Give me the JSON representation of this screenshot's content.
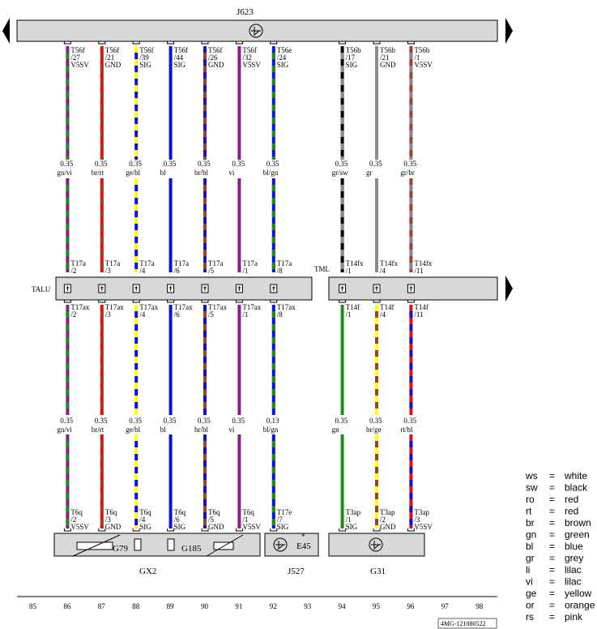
{
  "top_module": {
    "name": "J623"
  },
  "labels": {
    "talu": "TALU",
    "tml": "TML",
    "gx2": "GX2",
    "j527": "J527",
    "g31": "G31",
    "g79": "G79",
    "g185": "G185",
    "e45": "E45",
    "e45_star": "*",
    "ref_code": "4MG-121080522"
  },
  "columns": [
    85,
    86,
    87,
    88,
    89,
    90,
    91,
    92,
    93,
    94,
    95,
    96,
    97,
    98
  ],
  "wires": [
    {
      "col": 86,
      "colors": [
        "purple",
        "green"
      ],
      "top_pin": [
        "T56f",
        "/27",
        "V5SV"
      ],
      "sec1": [
        "0.35",
        "gn/vi"
      ],
      "mid_pin": [
        "T17a",
        "/2"
      ],
      "low_pin": [
        "T17ax",
        "/2"
      ],
      "sec2": [
        "0.35",
        "gn/vi"
      ],
      "bot_pin": [
        "T6q",
        "/2",
        "V5SV"
      ]
    },
    {
      "col": 87,
      "colors": [
        "red",
        "brown"
      ],
      "top_pin": [
        "T56f",
        "/21",
        "GND"
      ],
      "sec1": [
        "0.35",
        "br/rt"
      ],
      "mid_pin": [
        "T17a",
        "/3"
      ],
      "low_pin": [
        "T17ax",
        "/3"
      ],
      "sec2": [
        "0.35",
        "br/rt"
      ],
      "bot_pin": [
        "T6q",
        "/3",
        "GND"
      ]
    },
    {
      "col": 88,
      "colors": [
        "yellow",
        "blue"
      ],
      "top_pin": [
        "T56f",
        "/39",
        "SIG"
      ],
      "sec1": [
        "0.35",
        "ge/bl"
      ],
      "mid_pin": [
        "T17a",
        "/4"
      ],
      "low_pin": [
        "T17ax",
        "/4"
      ],
      "sec2": [
        "0.35",
        "ge/bl"
      ],
      "bot_pin": [
        "T6q",
        "/4",
        "SIG"
      ]
    },
    {
      "col": 89,
      "colors": [
        "blue"
      ],
      "top_pin": [
        "T56f",
        "/44",
        "SIG"
      ],
      "sec1": [
        "0.35",
        "bl"
      ],
      "mid_pin": [
        "T17a",
        "/6"
      ],
      "low_pin": [
        "T17ax",
        "/6"
      ],
      "sec2": [
        "0.35",
        "bl"
      ],
      "bot_pin": [
        "T6q",
        "/6",
        "SIG"
      ]
    },
    {
      "col": 90,
      "colors": [
        "blue",
        "brown"
      ],
      "top_pin": [
        "T56f",
        "/26",
        "GND"
      ],
      "sec1": [
        "0.35",
        "br/bl"
      ],
      "mid_pin": [
        "T17a",
        "/5"
      ],
      "low_pin": [
        "T17ax",
        "/5"
      ],
      "sec2": [
        "0.35",
        "br/bl"
      ],
      "bot_pin": [
        "T6q",
        "/5",
        "GND"
      ]
    },
    {
      "col": 91,
      "colors": [
        "purple"
      ],
      "top_pin": [
        "T56f",
        "/32",
        "V5SV"
      ],
      "sec1": [
        "0.35",
        "vi"
      ],
      "mid_pin": [
        "T17a",
        "/1"
      ],
      "low_pin": [
        "T17ax",
        "/1"
      ],
      "sec2": [
        "0.35",
        "vi"
      ],
      "bot_pin": [
        "T6q",
        "/1",
        "V5SV"
      ]
    },
    {
      "col": 92,
      "colors": [
        "blue",
        "green"
      ],
      "top_pin": [
        "T56e",
        "/24",
        "SIG"
      ],
      "sec1": [
        "0.35",
        "bl/gn"
      ],
      "mid_pin": [
        "T17a",
        "/8"
      ],
      "low_pin": [
        "T17ax",
        "/8"
      ],
      "sec2": [
        "0.13",
        "bl/gn"
      ],
      "bot_pin": [
        "T17e",
        "/7",
        "SIG"
      ]
    },
    {
      "col": 94,
      "colors": [
        "black",
        "gray"
      ],
      "top_pin": [
        "T56b",
        "/17",
        "SIG"
      ],
      "sec1": [
        "0.35",
        "gr/sw"
      ],
      "mid_pin": [
        "T14fx",
        "/1"
      ],
      "low_pin": [
        "T14f",
        "/1"
      ],
      "sec2": [
        "0.35",
        "gn"
      ],
      "bot_pin": [
        "T3ap",
        "/1",
        "SIG"
      ],
      "low_colors": [
        "green"
      ]
    },
    {
      "col": 95,
      "colors": [
        "gray"
      ],
      "top_pin": [
        "T56b",
        "/21",
        "GND"
      ],
      "sec1": [
        "0.35",
        "gr"
      ],
      "mid_pin": [
        "T14fx",
        "/4"
      ],
      "low_pin": [
        "T14f",
        "/4"
      ],
      "sec2": [
        "0.35",
        "br/ge"
      ],
      "bot_pin": [
        "T3ap",
        "/2",
        "GND"
      ],
      "low_colors": [
        "yellow",
        "brown"
      ]
    },
    {
      "col": 96,
      "colors": [
        "brown",
        "gray"
      ],
      "top_pin": [
        "T56b",
        "/1",
        "V5SV"
      ],
      "sec1": [
        "0.35",
        "gr/br"
      ],
      "mid_pin": [
        "T14fx",
        "/11"
      ],
      "low_pin": [
        "T14f",
        "/11"
      ],
      "sec2": [
        "0.35",
        "rt/bl"
      ],
      "bot_pin": [
        "T3ap",
        "/3",
        "V5SV"
      ],
      "low_colors": [
        "red",
        "blue"
      ]
    }
  ],
  "legend": [
    {
      "code": "ws",
      "eq": "=",
      "name": "white"
    },
    {
      "code": "sw",
      "eq": "=",
      "name": "black"
    },
    {
      "code": "ro",
      "eq": "=",
      "name": "red"
    },
    {
      "code": "rt",
      "eq": "=",
      "name": "red"
    },
    {
      "code": "br",
      "eq": "=",
      "name": "brown"
    },
    {
      "code": "gn",
      "eq": "=",
      "name": "green"
    },
    {
      "code": "bl",
      "eq": "=",
      "name": "blue"
    },
    {
      "code": "gr",
      "eq": "=",
      "name": "grey"
    },
    {
      "code": "li",
      "eq": "=",
      "name": "lilac"
    },
    {
      "code": "vi",
      "eq": "=",
      "name": "lilac"
    },
    {
      "code": "ge",
      "eq": "=",
      "name": "yellow"
    },
    {
      "code": "or",
      "eq": "=",
      "name": "orange"
    },
    {
      "code": "rs",
      "eq": "=",
      "name": "pink"
    }
  ],
  "colors": {
    "purple": "#8b1a8b",
    "green": "#1f8a1f",
    "red": "#e01010",
    "brown": "#a0402a",
    "yellow": "#ffff00",
    "blue": "#1010e0",
    "black": "#000000",
    "gray": "#8a8a8a",
    "bar": "#d8d8d8",
    "border": "#000000"
  },
  "icons": [
    "sensor-icon",
    "connector-icon",
    "arrow-left-icon",
    "arrow-right-icon"
  ]
}
